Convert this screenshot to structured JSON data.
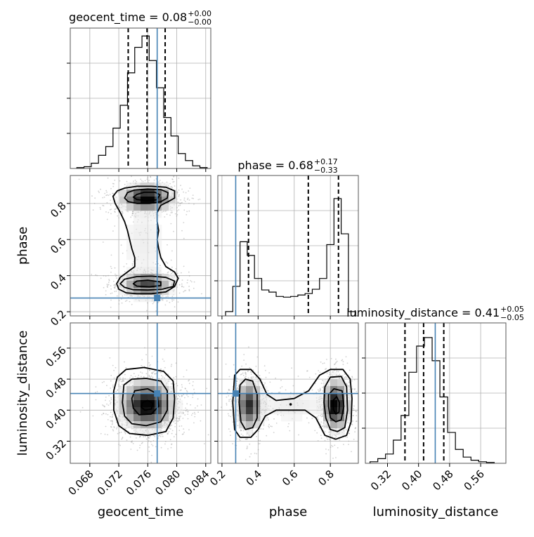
{
  "chart_data": {
    "type": "corner",
    "parameters": [
      "geocent_time",
      "phase",
      "luminosity_distance"
    ],
    "truths": {
      "geocent_time": 0.0773,
      "phase": 0.276,
      "luminosity_distance": 0.443
    },
    "grid": true,
    "panel_titles": [
      {
        "param": "geocent_time",
        "text": "geocent_time = 0.08",
        "plus": "+0.00",
        "minus": "−0.00"
      },
      {
        "param": "phase",
        "text": "phase = 0.68",
        "plus": "+0.17",
        "minus": "−0.33"
      },
      {
        "param": "luminosity_distance",
        "text": "luminosity_distance = 0.41",
        "plus": "+0.05",
        "minus": "−0.05"
      }
    ],
    "axes": {
      "geocent_time": {
        "range": [
          0.0653,
          0.0847
        ],
        "ticks": [
          0.068,
          0.072,
          0.076,
          0.08,
          0.084
        ],
        "tick_labels": [
          "0.068",
          "0.072",
          "0.076",
          "0.080",
          "0.084"
        ]
      },
      "phase": {
        "range": [
          0.177,
          0.955
        ],
        "ticks": [
          0.2,
          0.4,
          0.6,
          0.8
        ],
        "tick_labels": [
          "0.2",
          "0.4",
          "0.6",
          "0.8"
        ]
      },
      "luminosity_distance": {
        "range": [
          0.263,
          0.625
        ],
        "ticks": [
          0.32,
          0.4,
          0.48,
          0.56
        ],
        "tick_labels": [
          "0.32",
          "0.40",
          "0.48",
          "0.56"
        ]
      }
    },
    "histograms": {
      "geocent_time": {
        "bin_edges": [
          0.0662,
          0.0672,
          0.0682,
          0.0692,
          0.0702,
          0.0712,
          0.0722,
          0.0732,
          0.0742,
          0.0752,
          0.0762,
          0.0772,
          0.0782,
          0.0792,
          0.0802,
          0.0812,
          0.0822,
          0.0832,
          0.0842
        ],
        "counts": [
          1,
          2,
          6,
          15,
          25,
          46,
          72,
          109,
          138,
          151,
          123,
          92,
          58,
          37,
          17,
          9,
          3,
          1
        ],
        "quantiles": [
          0.0733,
          0.0759,
          0.0784
        ],
        "ymax": 160
      },
      "phase": {
        "bin_edges": [
          0.22,
          0.26,
          0.3,
          0.34,
          0.38,
          0.42,
          0.46,
          0.5,
          0.54,
          0.58,
          0.62,
          0.66,
          0.7,
          0.74,
          0.78,
          0.82,
          0.86,
          0.9,
          0.94
        ],
        "counts": [
          6,
          41,
          103,
          84,
          52,
          36,
          33,
          27,
          26,
          27,
          29,
          31,
          37,
          52,
          99,
          163,
          114,
          6
        ],
        "quantiles": [
          0.347,
          0.678,
          0.845
        ],
        "ymax": 195
      },
      "luminosity_distance": {
        "bin_edges": [
          0.275,
          0.295,
          0.315,
          0.335,
          0.355,
          0.375,
          0.395,
          0.415,
          0.435,
          0.455,
          0.475,
          0.495,
          0.515,
          0.535,
          0.555,
          0.575,
          0.595
        ],
        "counts": [
          2,
          6,
          12,
          30,
          62,
          118,
          152,
          163,
          133,
          86,
          40,
          18,
          8,
          4,
          2,
          1
        ],
        "quantiles": [
          0.365,
          0.413,
          0.465
        ],
        "ymax": 182
      }
    },
    "pairs": [
      {
        "x": "geocent_time",
        "y": "phase",
        "modes": [
          {
            "cx": 0.0759,
            "cy": 0.83,
            "sx": 0.0018,
            "sy": 0.035,
            "w": 1.15
          },
          {
            "cx": 0.0759,
            "cy": 0.35,
            "sx": 0.0018,
            "sy": 0.036,
            "w": 0.75
          },
          {
            "cx": 0.0755,
            "cy": 0.59,
            "sx": 0.0022,
            "sy": 0.14,
            "w": 0.12
          }
        ],
        "contours": [
          [
            [
              0.0718,
              0.87
            ],
            [
              0.0728,
              0.885
            ],
            [
              0.0745,
              0.895
            ],
            [
              0.0765,
              0.895
            ],
            [
              0.0785,
              0.89
            ],
            [
              0.0797,
              0.87
            ],
            [
              0.0797,
              0.83
            ],
            [
              0.0788,
              0.81
            ],
            [
              0.0778,
              0.79
            ],
            [
              0.0773,
              0.75
            ],
            [
              0.0773,
              0.7
            ],
            [
              0.0775,
              0.65
            ],
            [
              0.0773,
              0.6
            ],
            [
              0.0775,
              0.55
            ],
            [
              0.0778,
              0.5
            ],
            [
              0.0785,
              0.45
            ],
            [
              0.0797,
              0.42
            ],
            [
              0.0802,
              0.385
            ],
            [
              0.0797,
              0.34
            ],
            [
              0.0785,
              0.31
            ],
            [
              0.0765,
              0.3
            ],
            [
              0.0745,
              0.3
            ],
            [
              0.073,
              0.305
            ],
            [
              0.072,
              0.325
            ],
            [
              0.0717,
              0.355
            ],
            [
              0.0722,
              0.39
            ],
            [
              0.0732,
              0.42
            ],
            [
              0.0742,
              0.45
            ],
            [
              0.0742,
              0.5
            ],
            [
              0.0738,
              0.55
            ],
            [
              0.0735,
              0.6
            ],
            [
              0.0732,
              0.65
            ],
            [
              0.0728,
              0.7
            ],
            [
              0.0722,
              0.75
            ],
            [
              0.0715,
              0.8
            ],
            [
              0.0712,
              0.84
            ]
          ],
          [
            [
              0.0732,
              0.86
            ],
            [
              0.0742,
              0.875
            ],
            [
              0.076,
              0.88
            ],
            [
              0.0778,
              0.877
            ],
            [
              0.0788,
              0.86
            ],
            [
              0.0787,
              0.83
            ],
            [
              0.0778,
              0.81
            ],
            [
              0.0762,
              0.8
            ],
            [
              0.0745,
              0.8
            ],
            [
              0.0733,
              0.81
            ],
            [
              0.0728,
              0.83
            ]
          ],
          [
            [
              0.0745,
              0.85
            ],
            [
              0.0755,
              0.862
            ],
            [
              0.077,
              0.862
            ],
            [
              0.0777,
              0.848
            ],
            [
              0.0772,
              0.82
            ],
            [
              0.0758,
              0.815
            ],
            [
              0.0745,
              0.822
            ],
            [
              0.074,
              0.835
            ]
          ],
          [
            [
              0.0728,
              0.38
            ],
            [
              0.0745,
              0.395
            ],
            [
              0.0765,
              0.397
            ],
            [
              0.0785,
              0.39
            ],
            [
              0.0797,
              0.37
            ],
            [
              0.0795,
              0.34
            ],
            [
              0.078,
              0.325
            ],
            [
              0.076,
              0.32
            ],
            [
              0.074,
              0.322
            ],
            [
              0.0728,
              0.335
            ],
            [
              0.0722,
              0.355
            ]
          ],
          [
            [
              0.0745,
              0.37
            ],
            [
              0.076,
              0.375
            ],
            [
              0.0778,
              0.365
            ],
            [
              0.0778,
              0.345
            ],
            [
              0.0762,
              0.338
            ],
            [
              0.0745,
              0.342
            ],
            [
              0.074,
              0.355
            ]
          ]
        ]
      },
      {
        "x": "geocent_time",
        "y": "luminosity_distance",
        "modes": [
          {
            "cx": 0.0759,
            "cy": 0.413,
            "sx": 0.0019,
            "sy": 0.032,
            "w": 1
          }
        ],
        "contours": [
          [
            [
              0.0718,
              0.485
            ],
            [
              0.073,
              0.505
            ],
            [
              0.0755,
              0.51
            ],
            [
              0.0782,
              0.5
            ],
            [
              0.0795,
              0.475
            ],
            [
              0.0797,
              0.43
            ],
            [
              0.0795,
              0.38
            ],
            [
              0.0785,
              0.345
            ],
            [
              0.076,
              0.335
            ],
            [
              0.0735,
              0.34
            ],
            [
              0.072,
              0.36
            ],
            [
              0.0713,
              0.4
            ],
            [
              0.0713,
              0.45
            ]
          ],
          [
            [
              0.0727,
              0.465
            ],
            [
              0.0738,
              0.48
            ],
            [
              0.0758,
              0.482
            ],
            [
              0.0778,
              0.475
            ],
            [
              0.0787,
              0.45
            ],
            [
              0.0787,
              0.4
            ],
            [
              0.0778,
              0.37
            ],
            [
              0.0758,
              0.36
            ],
            [
              0.0738,
              0.365
            ],
            [
              0.0728,
              0.385
            ],
            [
              0.0725,
              0.42
            ]
          ],
          [
            [
              0.0742,
              0.45
            ],
            [
              0.076,
              0.455
            ],
            [
              0.0773,
              0.442
            ],
            [
              0.0775,
              0.41
            ],
            [
              0.0765,
              0.39
            ],
            [
              0.0748,
              0.388
            ],
            [
              0.074,
              0.405
            ],
            [
              0.0738,
              0.43
            ]
          ],
          [
            [
              0.0753,
              0.42
            ],
            [
              0.076,
              0.425
            ],
            [
              0.0767,
              0.418
            ],
            [
              0.0765,
              0.403
            ],
            [
              0.0756,
              0.4
            ],
            [
              0.0751,
              0.408
            ]
          ]
        ]
      },
      {
        "x": "phase",
        "y": "luminosity_distance",
        "modes": [
          {
            "cx": 0.35,
            "cy": 0.413,
            "sx": 0.038,
            "sy": 0.033,
            "w": 0.85
          },
          {
            "cx": 0.83,
            "cy": 0.413,
            "sx": 0.035,
            "sy": 0.033,
            "w": 1.1
          },
          {
            "cx": 0.59,
            "cy": 0.413,
            "sx": 0.12,
            "sy": 0.03,
            "w": 0.13
          }
        ],
        "contours": [
          [
            [
              0.27,
              0.49
            ],
            [
              0.3,
              0.505
            ],
            [
              0.36,
              0.505
            ],
            [
              0.41,
              0.48
            ],
            [
              0.45,
              0.44
            ],
            [
              0.5,
              0.425
            ],
            [
              0.6,
              0.43
            ],
            [
              0.68,
              0.45
            ],
            [
              0.74,
              0.49
            ],
            [
              0.8,
              0.505
            ],
            [
              0.87,
              0.505
            ],
            [
              0.91,
              0.48
            ],
            [
              0.92,
              0.43
            ],
            [
              0.915,
              0.37
            ],
            [
              0.89,
              0.335
            ],
            [
              0.83,
              0.325
            ],
            [
              0.77,
              0.335
            ],
            [
              0.72,
              0.38
            ],
            [
              0.66,
              0.4
            ],
            [
              0.6,
              0.4
            ],
            [
              0.5,
              0.4
            ],
            [
              0.44,
              0.385
            ],
            [
              0.4,
              0.35
            ],
            [
              0.36,
              0.33
            ],
            [
              0.3,
              0.33
            ],
            [
              0.27,
              0.35
            ],
            [
              0.26,
              0.42
            ]
          ],
          [
            [
              0.3,
              0.465
            ],
            [
              0.33,
              0.48
            ],
            [
              0.37,
              0.475
            ],
            [
              0.395,
              0.44
            ],
            [
              0.395,
              0.38
            ],
            [
              0.37,
              0.355
            ],
            [
              0.33,
              0.35
            ],
            [
              0.305,
              0.37
            ],
            [
              0.295,
              0.42
            ]
          ],
          [
            [
              0.77,
              0.46
            ],
            [
              0.8,
              0.485
            ],
            [
              0.86,
              0.487
            ],
            [
              0.89,
              0.46
            ],
            [
              0.895,
              0.4
            ],
            [
              0.88,
              0.355
            ],
            [
              0.84,
              0.345
            ],
            [
              0.8,
              0.35
            ],
            [
              0.775,
              0.38
            ],
            [
              0.765,
              0.42
            ]
          ],
          [
            [
              0.79,
              0.44
            ],
            [
              0.82,
              0.455
            ],
            [
              0.865,
              0.45
            ],
            [
              0.875,
              0.41
            ],
            [
              0.86,
              0.375
            ],
            [
              0.83,
              0.37
            ],
            [
              0.8,
              0.38
            ],
            [
              0.79,
              0.41
            ]
          ],
          [
            [
              0.815,
              0.425
            ],
            [
              0.835,
              0.435
            ],
            [
              0.85,
              0.42
            ],
            [
              0.848,
              0.395
            ],
            [
              0.83,
              0.39
            ],
            [
              0.817,
              0.402
            ]
          ]
        ],
        "dots": [
          [
            0.58,
            0.415
          ]
        ]
      }
    ]
  }
}
